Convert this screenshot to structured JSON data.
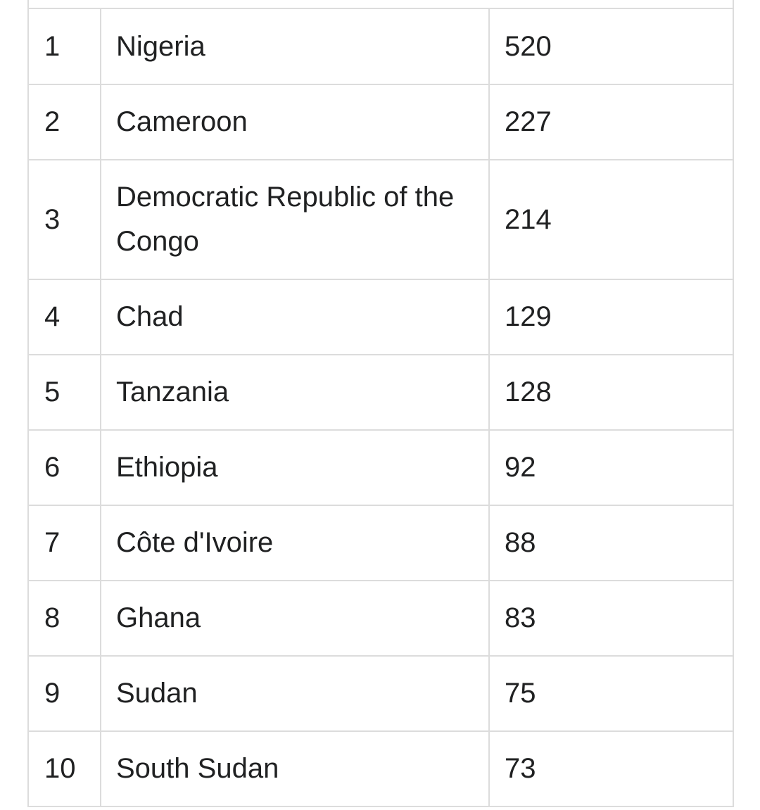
{
  "table": {
    "rows": [
      {
        "rank": "1",
        "country": "Nigeria",
        "value": "520"
      },
      {
        "rank": "2",
        "country": "Cameroon",
        "value": "227"
      },
      {
        "rank": "3",
        "country": "Democratic Republic of the Congo",
        "value": "214"
      },
      {
        "rank": "4",
        "country": "Chad",
        "value": "129"
      },
      {
        "rank": "5",
        "country": "Tanzania",
        "value": "128"
      },
      {
        "rank": "6",
        "country": "Ethiopia",
        "value": "92"
      },
      {
        "rank": "7",
        "country": "Côte d'Ivoire",
        "value": "88"
      },
      {
        "rank": "8",
        "country": "Ghana",
        "value": "83"
      },
      {
        "rank": "9",
        "country": "Sudan",
        "value": "75"
      },
      {
        "rank": "10",
        "country": "South Sudan",
        "value": "73"
      }
    ]
  }
}
